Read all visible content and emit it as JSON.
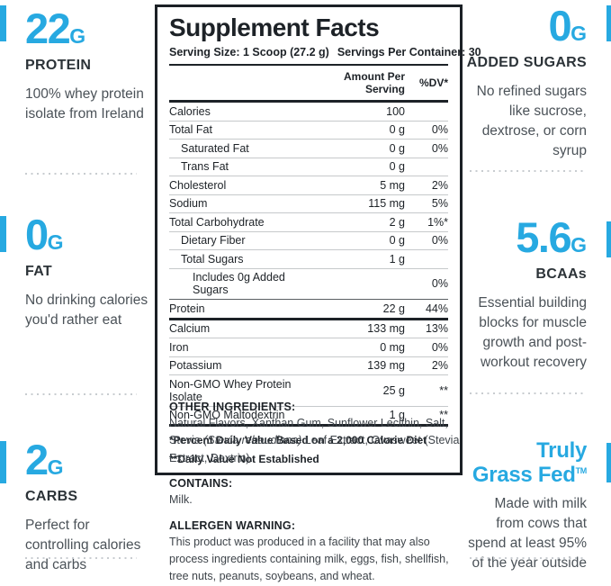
{
  "colors": {
    "brand_blue": "#27a9e1",
    "panel_dark": "#1d2227",
    "body_gray": "#4b5258"
  },
  "left_column": {
    "sections": [
      {
        "value": "22",
        "unit": "G",
        "label": "PROTEIN",
        "description": "100% whey protein isolate from Ireland"
      },
      {
        "value": "0",
        "unit": "G",
        "label": "FAT",
        "description": "No drinking calories you'd rather eat"
      },
      {
        "value": "2",
        "unit": "G",
        "label": "CARBS",
        "description": "Perfect for controlling calories and carbs"
      }
    ]
  },
  "right_column": {
    "sections": [
      {
        "value": "0",
        "unit": "G",
        "label": "ADDED SUGARS",
        "description": "No refined sugars like sucrose, dextrose, or corn syrup"
      },
      {
        "value": "5.6",
        "unit": "G",
        "label": "BCAAs",
        "description": "Essential building blocks for muscle growth and post-workout recovery"
      },
      {
        "title_line1": "Truly",
        "title_line2": "Grass Fed",
        "trademark": "TM",
        "description": "Made with milk from cows that spend at least 95% of the year outside"
      }
    ]
  },
  "panel": {
    "title": "Supplement Facts",
    "serving_size": "Serving Size: 1 Scoop (27.2 g)",
    "servings_per_container": "Servings Per Container: 30",
    "column_headers": {
      "amount": "Amount Per Serving",
      "daily_value": "%DV*"
    },
    "rows": [
      {
        "name": "Calories",
        "amount": "100",
        "dv": "",
        "indent": 0,
        "separator": "none"
      },
      {
        "name": "Total Fat",
        "amount": "0 g",
        "dv": "0%",
        "indent": 0,
        "separator": "thin"
      },
      {
        "name": "Saturated Fat",
        "amount": "0 g",
        "dv": "0%",
        "indent": 1,
        "separator": "thin"
      },
      {
        "name": "Trans Fat",
        "amount": "0 g",
        "dv": "",
        "indent": 1,
        "separator": "thin"
      },
      {
        "name": "Cholesterol",
        "amount": "5 mg",
        "dv": "2%",
        "indent": 0,
        "separator": "thin"
      },
      {
        "name": "Sodium",
        "amount": "115 mg",
        "dv": "5%",
        "indent": 0,
        "separator": "thin"
      },
      {
        "name": "Total Carbohydrate",
        "amount": "2 g",
        "dv": "1%*",
        "indent": 0,
        "separator": "thin"
      },
      {
        "name": "Dietary Fiber",
        "amount": "0 g",
        "dv": "0%",
        "indent": 1,
        "separator": "thin"
      },
      {
        "name": "Total Sugars",
        "amount": "1 g",
        "dv": "",
        "indent": 1,
        "separator": "thin"
      },
      {
        "name": "Includes 0g Added Sugars",
        "amount": "",
        "dv": "0%",
        "indent": 2,
        "separator": "thin"
      },
      {
        "name": "Protein",
        "amount": "22 g",
        "dv": "44%",
        "indent": 0,
        "separator": "dark"
      },
      {
        "name": "Calcium",
        "amount": "133 mg",
        "dv": "13%",
        "indent": 0,
        "separator": "thick"
      },
      {
        "name": "Iron",
        "amount": "0 mg",
        "dv": "0%",
        "indent": 0,
        "separator": "thin"
      },
      {
        "name": "Potassium",
        "amount": "139 mg",
        "dv": "2%",
        "indent": 0,
        "separator": "thin"
      },
      {
        "name": "Non-GMO Whey Protein Isolate",
        "amount": "25 g",
        "dv": "**",
        "indent": 0,
        "separator": "thin"
      },
      {
        "name": "Non-GMO Maltodextrin",
        "amount": "1 g",
        "dv": "**",
        "indent": 0,
        "separator": "thin"
      }
    ],
    "footnotes": [
      "*Percent Daily Value Based on a 2,000 Calorie Diet",
      "**Daily Value Not Established"
    ]
  },
  "info_sections": [
    {
      "heading": "OTHER INGREDIENTS:",
      "text_before": "Natural Flavors, Xanthan Gum, Sunflower Lecithin, Salt, Stevia ",
      "text_italic": "(Stevia rebaudiana)",
      "text_after": " Leaf Extract, Ovasweet (Stevia Extract, Dextrin)."
    },
    {
      "heading": "CONTAINS:",
      "text_before": "Milk.",
      "text_italic": "",
      "text_after": ""
    },
    {
      "heading": "ALLERGEN WARNING:",
      "text_before": "This product was produced in a facility that may also process ingredients containing milk, eggs, fish, shellfish, tree nuts, peanuts, soybeans, and wheat.",
      "text_italic": "",
      "text_after": ""
    }
  ]
}
